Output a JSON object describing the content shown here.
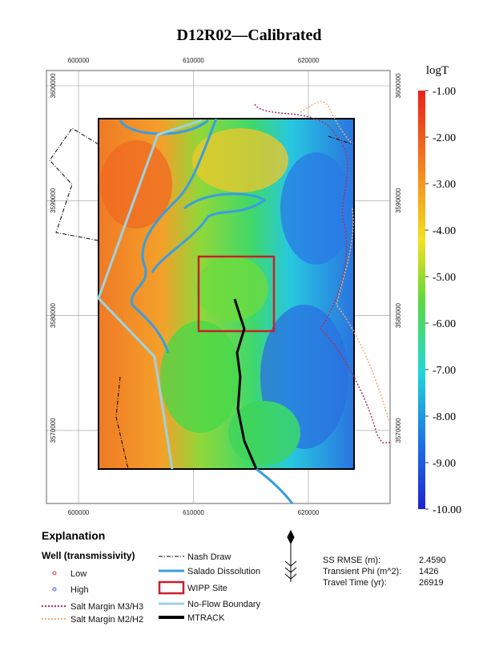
{
  "title": "D12R02—Calibrated",
  "map": {
    "xticks": [
      600000,
      610000,
      620000
    ],
    "yticks": [
      3600000,
      3590000,
      3580000,
      3570000
    ]
  },
  "colorbar": {
    "title": "logT",
    "ticks": [
      {
        "value": -1,
        "label": "-1.00"
      },
      {
        "value": -2,
        "label": "-2.00"
      },
      {
        "value": -3,
        "label": "-3.00"
      },
      {
        "value": -4,
        "label": "-4.00"
      },
      {
        "value": -5,
        "label": "-5.00"
      },
      {
        "value": -6,
        "label": "-6.00"
      },
      {
        "value": -7,
        "label": "-7.00"
      },
      {
        "value": -8,
        "label": "-8.00"
      },
      {
        "value": -9,
        "label": "-9.00"
      },
      {
        "value": -10,
        "label": "-10.00"
      }
    ]
  },
  "legend": {
    "title": "Explanation",
    "wells_title": "Well (transmissivity)",
    "low": "Low",
    "high": "High",
    "m3h3": "Salt Margin M3/H3",
    "m2h2": "Salt Margin M2/H2",
    "nash": "Nash Draw",
    "salado": "Salado Dissolution",
    "wipp": "WIPP Site",
    "noflow": "No-Flow Boundary",
    "mtrack": "MTRACK"
  },
  "stats": [
    {
      "label": "SS RMSE (m):",
      "value": "2.4590"
    },
    {
      "label": "Transient Phi (m^2):",
      "value": 1426
    },
    {
      "label": "Travel Time (yr):",
      "value": 26919
    }
  ]
}
